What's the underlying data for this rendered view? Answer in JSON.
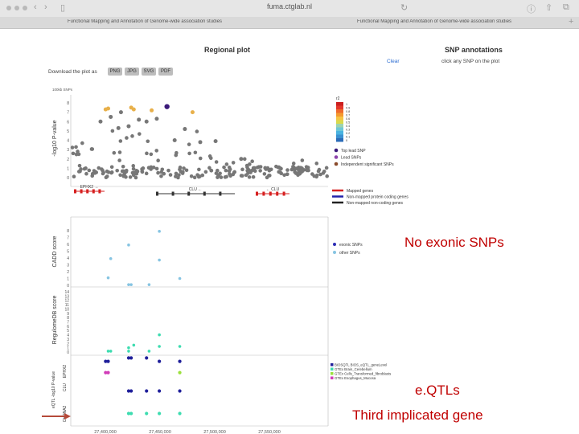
{
  "browser": {
    "url": "fuma.ctglab.nl",
    "tabs": [
      {
        "label": "Functional Mapping and Annotation of Genome-wide association studies"
      },
      {
        "label": "Functional Mapping and Annotation of Genome-wide association studies"
      }
    ]
  },
  "regional_plot": {
    "title": "Regional plot",
    "download_label": "Download the plot as",
    "formats": [
      "PNG",
      "JPG",
      "SVG",
      "PDF"
    ],
    "top_label": "100kb SNPs"
  },
  "snp_annotations": {
    "title": "SNP annotations",
    "clear_label": "Clear",
    "hint": "click any SNP on the plot"
  },
  "annotations": {
    "no_exonic": "No exonic SNPs",
    "eqtls": "e.QTLs",
    "third_gene": "Third implicated gene",
    "arrow_color": "#b54a3a",
    "text_color": "#c00000"
  },
  "chart_data": [
    {
      "type": "scatter",
      "ylabel": "-log10 P-value",
      "ylim": [
        0,
        8
      ],
      "yticks": [
        "0",
        "1",
        "2",
        "3",
        "4",
        "5",
        "6",
        "7",
        "8"
      ],
      "legend": {
        "r2_title": "r2",
        "r2_ticks": [
          "1",
          "0.9",
          "0.8",
          "0.7",
          "0.6",
          "0.5",
          "0.4",
          "0.3",
          "0.2",
          "0.1",
          "0"
        ],
        "entries": [
          {
            "label": "Top lead SNP",
            "color": "#3b1a7a"
          },
          {
            "label": "Lead SNPs",
            "color": "#8e44ad"
          },
          {
            "label": "Independent significant SNPs",
            "color": "#8a4b2b"
          }
        ]
      },
      "points": [
        {
          "x": 0.37,
          "y": 7.6,
          "color": "#3b1a7a"
        },
        {
          "x": 0.13,
          "y": 7.3,
          "color": "#e8b04a"
        },
        {
          "x": 0.14,
          "y": 7.4,
          "color": "#e8b04a"
        },
        {
          "x": 0.23,
          "y": 7.5,
          "color": "#e8b04a"
        },
        {
          "x": 0.24,
          "y": 7.3,
          "color": "#e8b04a"
        },
        {
          "x": 0.31,
          "y": 7.2,
          "color": "#e8b04a"
        },
        {
          "x": 0.47,
          "y": 7.0,
          "color": "#e8b04a"
        },
        {
          "x": 0.11,
          "y": 6.0,
          "color": "#777777"
        },
        {
          "x": 0.15,
          "y": 6.5,
          "color": "#777777"
        },
        {
          "x": 0.18,
          "y": 5.3,
          "color": "#777777"
        },
        {
          "x": 0.19,
          "y": 7.0,
          "color": "#777777"
        },
        {
          "x": 0.22,
          "y": 5.5,
          "color": "#777777"
        },
        {
          "x": 0.26,
          "y": 6.2,
          "color": "#777777"
        },
        {
          "x": 0.29,
          "y": 6.0,
          "color": "#777777"
        },
        {
          "x": 0.33,
          "y": 6.3,
          "color": "#777777"
        },
        {
          "x": 0.4,
          "y": 4.0,
          "color": "#777777"
        },
        {
          "x": 0.44,
          "y": 5.2,
          "color": "#777777"
        },
        {
          "x": 0.5,
          "y": 3.8,
          "color": "#777777"
        },
        {
          "x": 0.56,
          "y": 3.9,
          "color": "#777777"
        },
        {
          "x": 0.66,
          "y": 2.0,
          "color": "#777777"
        }
      ]
    },
    {
      "type": "scatter",
      "ylabel": "CADD score",
      "ylim": [
        0,
        8
      ],
      "yticks": [
        "0",
        "1",
        "2",
        "3",
        "4",
        "5",
        "6",
        "7",
        "8"
      ],
      "legend": {
        "entries": [
          {
            "label": "exonic SNPs",
            "color": "#2d2db5"
          },
          {
            "label": "other SNPs",
            "color": "#86c4e2"
          }
        ]
      },
      "points": [
        {
          "x": 0.15,
          "y": 3.9
        },
        {
          "x": 0.14,
          "y": 1.1
        },
        {
          "x": 0.22,
          "y": 5.9
        },
        {
          "x": 0.22,
          "y": 0.1
        },
        {
          "x": 0.23,
          "y": 0.1
        },
        {
          "x": 0.3,
          "y": 0.1
        },
        {
          "x": 0.34,
          "y": 7.9
        },
        {
          "x": 0.34,
          "y": 3.7
        },
        {
          "x": 0.42,
          "y": 1.0
        }
      ]
    },
    {
      "type": "scatter",
      "ylabel": "RegulomeDB score",
      "ylim": [
        0,
        14
      ],
      "points": [
        {
          "x": 0.14,
          "y": 0.2
        },
        {
          "x": 0.15,
          "y": 0.2
        },
        {
          "x": 0.22,
          "y": 0.2
        },
        {
          "x": 0.22,
          "y": 1.0
        },
        {
          "x": 0.3,
          "y": 0.2
        },
        {
          "x": 0.34,
          "y": 4.0
        },
        {
          "x": 0.34,
          "y": 1.3
        },
        {
          "x": 0.42,
          "y": 1.3
        },
        {
          "x": 0.24,
          "y": 1.6
        }
      ]
    },
    {
      "type": "scatter",
      "ylabel": "eQTL -log10 P-value",
      "genes": [
        "EPHX2",
        "CLU",
        "CHRNA2"
      ],
      "x_ticks": [
        "27,400,000",
        "27,450,000",
        "27,500,000",
        "27,550,000"
      ],
      "legend": {
        "entries": [
          {
            "label": "BIOSQTL BIOS_eQTL_geneLevel",
            "color": "#1f1f9a"
          },
          {
            "label": "GTEx Brain_Cerebellum",
            "color": "#3ddcb0"
          },
          {
            "label": "GTEx Cells_Transformed_fibroblasts",
            "color": "#9be03c"
          },
          {
            "label": "GTEx Esophagus_Mucosa",
            "color": "#d13cb8"
          }
        ]
      },
      "points": [
        {
          "gene": "EPHX2",
          "x": 0.13,
          "y": 0.8,
          "color": "#1f1f9a"
        },
        {
          "gene": "EPHX2",
          "x": 0.14,
          "y": 0.8,
          "color": "#1f1f9a"
        },
        {
          "gene": "EPHX2",
          "x": 0.13,
          "y": 0.3,
          "color": "#d13cb8"
        },
        {
          "gene": "EPHX2",
          "x": 0.14,
          "y": 0.3,
          "color": "#d13cb8"
        },
        {
          "gene": "EPHX2",
          "x": 0.22,
          "y": 0.95,
          "color": "#1f1f9a"
        },
        {
          "gene": "EPHX2",
          "x": 0.23,
          "y": 0.95,
          "color": "#1f1f9a"
        },
        {
          "gene": "EPHX2",
          "x": 0.29,
          "y": 0.95,
          "color": "#1f1f9a"
        },
        {
          "gene": "EPHX2",
          "x": 0.34,
          "y": 0.8,
          "color": "#1f1f9a"
        },
        {
          "gene": "EPHX2",
          "x": 0.42,
          "y": 0.8,
          "color": "#1f1f9a"
        },
        {
          "gene": "EPHX2",
          "x": 0.42,
          "y": 0.3,
          "color": "#9be03c"
        },
        {
          "gene": "CLU",
          "x": 0.22,
          "y": 0.5,
          "color": "#1f1f9a"
        },
        {
          "gene": "CLU",
          "x": 0.23,
          "y": 0.5,
          "color": "#1f1f9a"
        },
        {
          "gene": "CLU",
          "x": 0.29,
          "y": 0.5,
          "color": "#1f1f9a"
        },
        {
          "gene": "CLU",
          "x": 0.34,
          "y": 0.5,
          "color": "#1f1f9a"
        },
        {
          "gene": "CLU",
          "x": 0.42,
          "y": 0.5,
          "color": "#1f1f9a"
        },
        {
          "gene": "CHRNA2",
          "x": 0.22,
          "y": 0.5,
          "color": "#3ddcb0"
        },
        {
          "gene": "CHRNA2",
          "x": 0.23,
          "y": 0.5,
          "color": "#3ddcb0"
        },
        {
          "gene": "CHRNA2",
          "x": 0.29,
          "y": 0.5,
          "color": "#3ddcb0"
        },
        {
          "gene": "CHRNA2",
          "x": 0.34,
          "y": 0.5,
          "color": "#3ddcb0"
        },
        {
          "gene": "CHRNA2",
          "x": 0.42,
          "y": 0.5,
          "color": "#3ddcb0"
        }
      ]
    }
  ],
  "gene_tracks": {
    "genes": [
      {
        "label": "EPHX2 →",
        "color": "#d62020"
      },
      {
        "label": "CLU ←",
        "color": "#333333"
      },
      {
        "label": "← CLU",
        "color": "#d62020"
      }
    ],
    "legend": [
      {
        "label": "Mapped genes",
        "color": "#d62020"
      },
      {
        "label": "Non-mapped protein coding genes",
        "color": "#2222aa"
      },
      {
        "label": "Non-mapped non-coding genes",
        "color": "#222222"
      }
    ]
  },
  "colors": {
    "grid_bg": "#ffffff",
    "axis": "#888888",
    "noise": "#777777"
  }
}
